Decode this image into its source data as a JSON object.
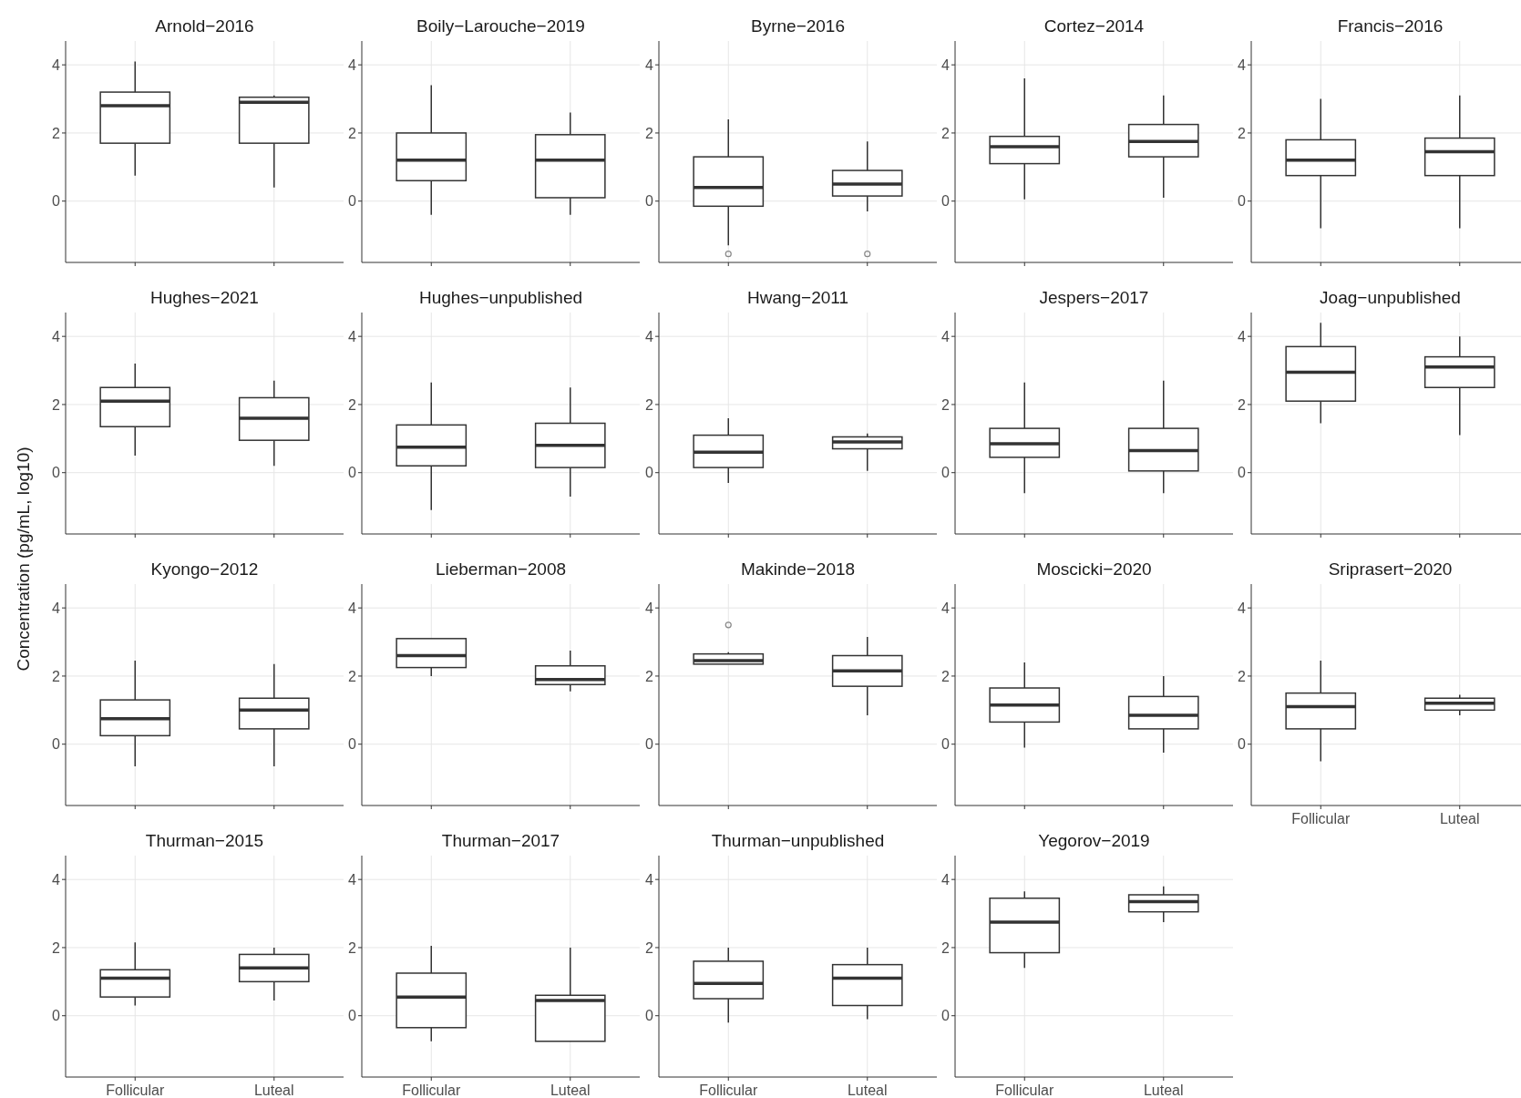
{
  "chart_data": [
    {
      "type": "box",
      "title": "Arnold−2016",
      "categories": [
        null,
        null
      ],
      "boxes": [
        {
          "low": 0.75,
          "q1": 1.7,
          "median": 2.8,
          "q3": 3.2,
          "high": 4.1
        },
        {
          "low": 0.4,
          "q1": 1.7,
          "median": 2.9,
          "q3": 3.05,
          "high": 3.1
        }
      ],
      "ylim": [
        -1.8,
        4.7
      ],
      "yticks": [
        0,
        2,
        4
      ],
      "grid": true,
      "tick_labels": "y"
    },
    {
      "type": "box",
      "title": "Boily−Larouche−2019",
      "categories": [
        null,
        null
      ],
      "boxes": [
        {
          "low": -0.4,
          "q1": 0.6,
          "median": 1.2,
          "q3": 2.0,
          "high": 3.4
        },
        {
          "low": -0.4,
          "q1": 0.1,
          "median": 1.2,
          "q3": 1.95,
          "high": 2.6
        }
      ],
      "ylim": [
        -1.8,
        4.7
      ],
      "yticks": [
        0,
        2,
        4
      ],
      "grid": true,
      "tick_labels": "y"
    },
    {
      "type": "box",
      "title": "Byrne−2016",
      "categories": [
        null,
        null
      ],
      "boxes": [
        {
          "low": -1.3,
          "q1": -0.15,
          "median": 0.4,
          "q3": 1.3,
          "high": 2.4,
          "outliers": [
            -1.55
          ]
        },
        {
          "low": -0.3,
          "q1": 0.15,
          "median": 0.5,
          "q3": 0.9,
          "high": 1.75,
          "outliers": [
            -1.55
          ]
        }
      ],
      "ylim": [
        -1.8,
        4.7
      ],
      "yticks": [
        0,
        2,
        4
      ],
      "grid": true,
      "tick_labels": "y"
    },
    {
      "type": "box",
      "title": "Cortez−2014",
      "categories": [
        null,
        null
      ],
      "boxes": [
        {
          "low": 0.05,
          "q1": 1.1,
          "median": 1.6,
          "q3": 1.9,
          "high": 3.6
        },
        {
          "low": 0.1,
          "q1": 1.3,
          "median": 1.75,
          "q3": 2.25,
          "high": 3.1
        }
      ],
      "ylim": [
        -1.8,
        4.7
      ],
      "yticks": [
        0,
        2,
        4
      ],
      "grid": true,
      "tick_labels": "y"
    },
    {
      "type": "box",
      "title": "Francis−2016",
      "categories": [
        null,
        null
      ],
      "boxes": [
        {
          "low": -0.8,
          "q1": 0.75,
          "median": 1.2,
          "q3": 1.8,
          "high": 3.0
        },
        {
          "low": -0.8,
          "q1": 0.75,
          "median": 1.45,
          "q3": 1.85,
          "high": 3.1
        }
      ],
      "ylim": [
        -1.8,
        4.7
      ],
      "yticks": [
        0,
        2,
        4
      ],
      "grid": true,
      "tick_labels": "y"
    },
    {
      "type": "box",
      "title": "Hughes−2021",
      "categories": [
        null,
        null
      ],
      "boxes": [
        {
          "low": 0.5,
          "q1": 1.35,
          "median": 2.1,
          "q3": 2.5,
          "high": 3.2
        },
        {
          "low": 0.2,
          "q1": 0.95,
          "median": 1.6,
          "q3": 2.2,
          "high": 2.7
        }
      ],
      "ylim": [
        -1.8,
        4.7
      ],
      "yticks": [
        0,
        2,
        4
      ],
      "grid": true,
      "tick_labels": "y"
    },
    {
      "type": "box",
      "title": "Hughes−unpublished",
      "categories": [
        null,
        null
      ],
      "boxes": [
        {
          "low": -1.1,
          "q1": 0.2,
          "median": 0.75,
          "q3": 1.4,
          "high": 2.65
        },
        {
          "low": -0.7,
          "q1": 0.15,
          "median": 0.8,
          "q3": 1.45,
          "high": 2.5
        }
      ],
      "ylim": [
        -1.8,
        4.7
      ],
      "yticks": [
        0,
        2,
        4
      ],
      "grid": true,
      "tick_labels": "y"
    },
    {
      "type": "box",
      "title": "Hwang−2011",
      "categories": [
        null,
        null
      ],
      "boxes": [
        {
          "low": -0.3,
          "q1": 0.15,
          "median": 0.6,
          "q3": 1.1,
          "high": 1.6
        },
        {
          "low": 0.05,
          "q1": 0.7,
          "median": 0.9,
          "q3": 1.05,
          "high": 1.15
        }
      ],
      "ylim": [
        -1.8,
        4.7
      ],
      "yticks": [
        0,
        2,
        4
      ],
      "grid": true,
      "tick_labels": "y"
    },
    {
      "type": "box",
      "title": "Jespers−2017",
      "categories": [
        null,
        null
      ],
      "boxes": [
        {
          "low": -0.6,
          "q1": 0.45,
          "median": 0.85,
          "q3": 1.3,
          "high": 2.65
        },
        {
          "low": -0.6,
          "q1": 0.05,
          "median": 0.65,
          "q3": 1.3,
          "high": 2.7
        }
      ],
      "ylim": [
        -1.8,
        4.7
      ],
      "yticks": [
        0,
        2,
        4
      ],
      "grid": true,
      "tick_labels": "y"
    },
    {
      "type": "box",
      "title": "Joag−unpublished",
      "categories": [
        null,
        null
      ],
      "boxes": [
        {
          "low": 1.45,
          "q1": 2.1,
          "median": 2.95,
          "q3": 3.7,
          "high": 4.4
        },
        {
          "low": 1.1,
          "q1": 2.5,
          "median": 3.1,
          "q3": 3.4,
          "high": 4.0
        }
      ],
      "ylim": [
        -1.8,
        4.7
      ],
      "yticks": [
        0,
        2,
        4
      ],
      "grid": true,
      "tick_labels": "y"
    },
    {
      "type": "box",
      "title": "Kyongo−2012",
      "ylabel": "Concentration (pg/mL, log10)",
      "categories": [
        null,
        null
      ],
      "boxes": [
        {
          "low": -0.65,
          "q1": 0.25,
          "median": 0.75,
          "q3": 1.3,
          "high": 2.45
        },
        {
          "low": -0.65,
          "q1": 0.45,
          "median": 1.0,
          "q3": 1.35,
          "high": 2.35
        }
      ],
      "ylim": [
        -1.8,
        4.7
      ],
      "yticks": [
        0,
        2,
        4
      ],
      "grid": true,
      "tick_labels": "y"
    },
    {
      "type": "box",
      "title": "Lieberman−2008",
      "categories": [
        null,
        null
      ],
      "boxes": [
        {
          "low": 2.0,
          "q1": 2.25,
          "median": 2.6,
          "q3": 3.1,
          "high": 3.1
        },
        {
          "low": 1.55,
          "q1": 1.75,
          "median": 1.9,
          "q3": 2.3,
          "high": 2.75
        }
      ],
      "ylim": [
        -1.8,
        4.7
      ],
      "yticks": [
        0,
        2,
        4
      ],
      "grid": true,
      "tick_labels": "y"
    },
    {
      "type": "box",
      "title": "Makinde−2018",
      "categories": [
        null,
        null
      ],
      "boxes": [
        {
          "low": 2.35,
          "q1": 2.35,
          "median": 2.45,
          "q3": 2.65,
          "high": 2.7,
          "outliers": [
            3.5
          ]
        },
        {
          "low": 0.85,
          "q1": 1.7,
          "median": 2.15,
          "q3": 2.6,
          "high": 3.15
        }
      ],
      "ylim": [
        -1.8,
        4.7
      ],
      "yticks": [
        0,
        2,
        4
      ],
      "grid": true,
      "tick_labels": "y"
    },
    {
      "type": "box",
      "title": "Moscicki−2020",
      "categories": [
        null,
        null
      ],
      "boxes": [
        {
          "low": -0.1,
          "q1": 0.65,
          "median": 1.15,
          "q3": 1.65,
          "high": 2.4
        },
        {
          "low": -0.25,
          "q1": 0.45,
          "median": 0.85,
          "q3": 1.4,
          "high": 2.0
        }
      ],
      "ylim": [
        -1.8,
        4.7
      ],
      "yticks": [
        0,
        2,
        4
      ],
      "grid": true,
      "tick_labels": "y"
    },
    {
      "type": "box",
      "title": "Sriprasert−2020",
      "categories": [
        "Follicular",
        "Luteal"
      ],
      "boxes": [
        {
          "low": -0.5,
          "q1": 0.45,
          "median": 1.1,
          "q3": 1.5,
          "high": 2.45
        },
        {
          "low": 0.85,
          "q1": 1.0,
          "median": 1.2,
          "q3": 1.35,
          "high": 1.45
        }
      ],
      "ylim": [
        -1.8,
        4.7
      ],
      "yticks": [
        0,
        2,
        4
      ],
      "grid": true
    },
    {
      "type": "box",
      "title": "Thurman−2015",
      "categories": [
        "Follicular",
        "Luteal"
      ],
      "boxes": [
        {
          "low": 0.3,
          "q1": 0.55,
          "median": 1.1,
          "q3": 1.35,
          "high": 2.15
        },
        {
          "low": 0.45,
          "q1": 1.0,
          "median": 1.4,
          "q3": 1.8,
          "high": 2.0
        }
      ],
      "ylim": [
        -1.8,
        4.7
      ],
      "yticks": [
        0,
        2,
        4
      ],
      "grid": true
    },
    {
      "type": "box",
      "title": "Thurman−2017",
      "categories": [
        "Follicular",
        "Luteal"
      ],
      "boxes": [
        {
          "low": -0.75,
          "q1": -0.35,
          "median": 0.55,
          "q3": 1.25,
          "high": 2.05
        },
        {
          "low": -0.75,
          "q1": -0.75,
          "median": 0.45,
          "q3": 0.6,
          "high": 2.0
        }
      ],
      "ylim": [
        -1.8,
        4.7
      ],
      "yticks": [
        0,
        2,
        4
      ],
      "grid": true
    },
    {
      "type": "box",
      "title": "Thurman−unpublished",
      "categories": [
        "Follicular",
        "Luteal"
      ],
      "boxes": [
        {
          "low": -0.2,
          "q1": 0.5,
          "median": 0.95,
          "q3": 1.6,
          "high": 2.0
        },
        {
          "low": -0.1,
          "q1": 0.3,
          "median": 1.1,
          "q3": 1.5,
          "high": 2.0
        }
      ],
      "ylim": [
        -1.8,
        4.7
      ],
      "yticks": [
        0,
        2,
        4
      ],
      "grid": true
    },
    {
      "type": "box",
      "title": "Yegorov−2019",
      "categories": [
        "Follicular",
        "Luteal"
      ],
      "boxes": [
        {
          "low": 1.4,
          "q1": 1.85,
          "median": 2.75,
          "q3": 3.45,
          "high": 3.65
        },
        {
          "low": 2.75,
          "q1": 3.05,
          "median": 3.35,
          "q3": 3.55,
          "high": 3.8
        }
      ],
      "ylim": [
        -1.8,
        4.7
      ],
      "yticks": [
        0,
        2,
        4
      ],
      "grid": true
    }
  ]
}
